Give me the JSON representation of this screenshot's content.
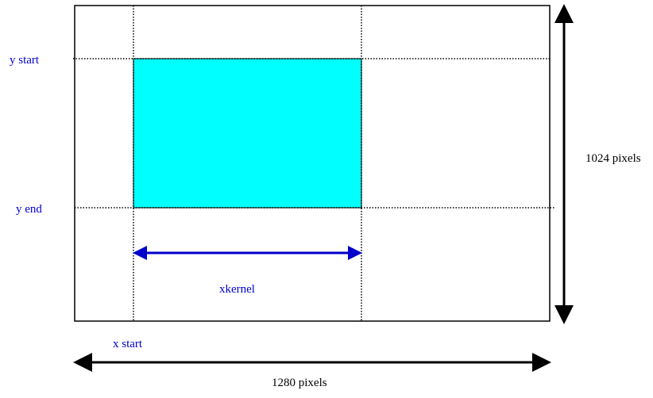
{
  "labels": {
    "y_start": "y start",
    "y_end": "y end",
    "x_start": "x start",
    "xkernel": "xkernel",
    "height": "1024 pixels",
    "width": "1280 pixels"
  },
  "colors": {
    "region_fill": "#00ffff",
    "label_blue": "#0000cc",
    "arrow_blue": "#0000cc",
    "black": "#000000"
  }
}
